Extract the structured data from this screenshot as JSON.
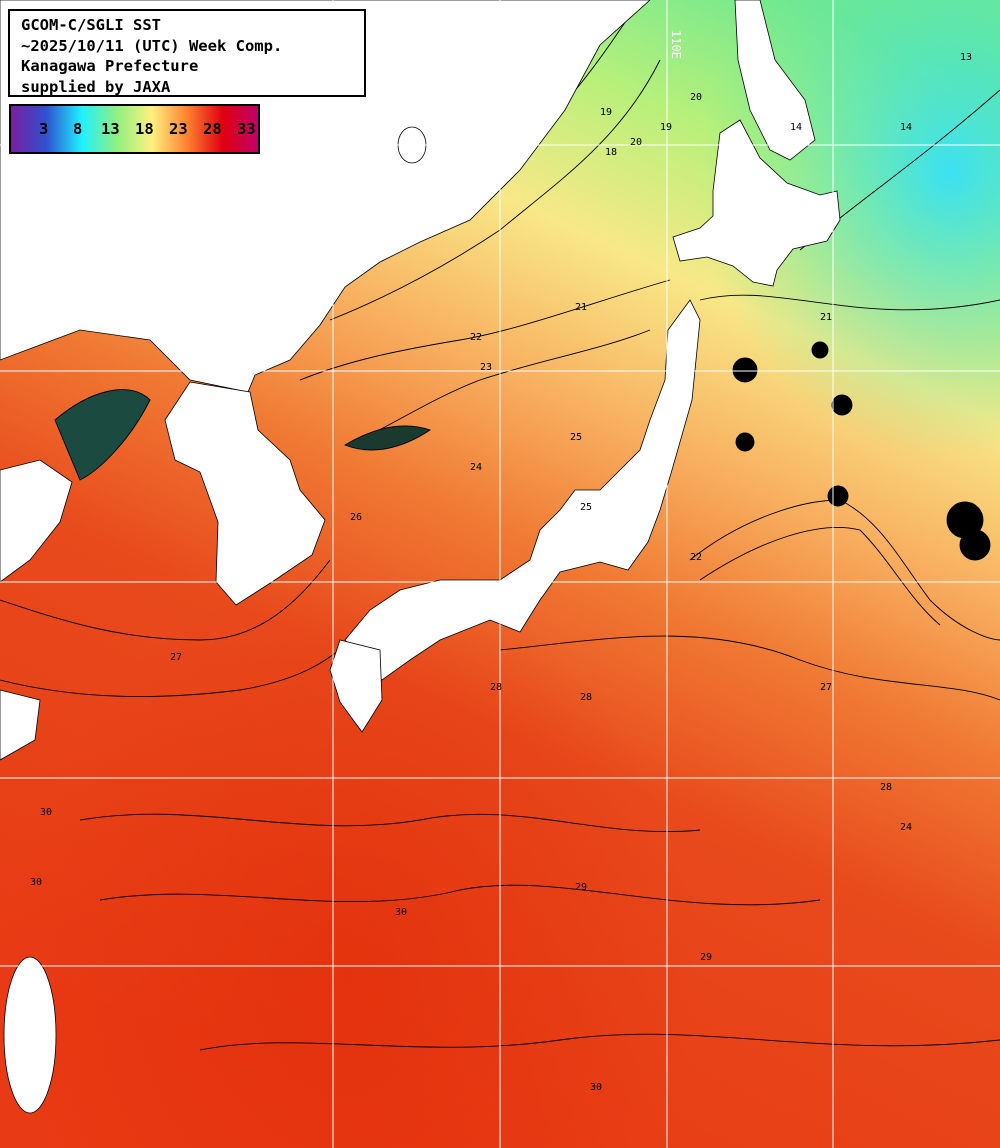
{
  "title_box": {
    "line1": "GCOM-C/SGLI SST",
    "line2": "~2025/10/11 (UTC) Week Comp.",
    "line3": "Kanagawa Prefecture",
    "line4": "supplied by JAXA"
  },
  "legend": {
    "ticks": [
      "3",
      "8",
      "13",
      "18",
      "23",
      "28",
      "33"
    ],
    "colors": [
      "#7a1fa0",
      "#3050d0",
      "#20f0ff",
      "#90f080",
      "#fff080",
      "#ff8030",
      "#e00010",
      "#c0006a"
    ]
  },
  "grid_label": "110E",
  "contour_labels": [
    "14",
    "14",
    "13",
    "19",
    "20",
    "19",
    "18",
    "20",
    "21",
    "22",
    "23",
    "24",
    "25",
    "25",
    "26",
    "27",
    "28",
    "28",
    "29",
    "30",
    "30",
    "30",
    "29",
    "30",
    "28",
    "27",
    "24",
    "22",
    "21"
  ],
  "colors": {
    "land": "#ffffff",
    "grid": "#ffffff",
    "contour": "#000000"
  }
}
